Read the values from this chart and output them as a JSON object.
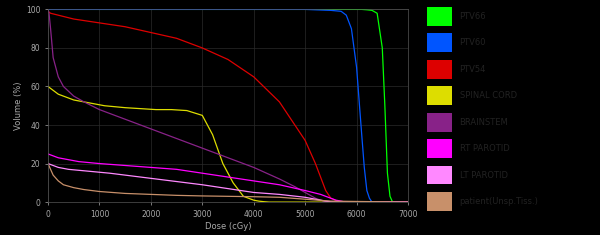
{
  "background_color": "#000000",
  "plot_bg_color": "#000000",
  "grid_color": "#2a2a2a",
  "text_color": "#aaaaaa",
  "xlabel": "Dose (cGy)",
  "ylabel": "Volume (%)",
  "xlim": [
    0,
    7000
  ],
  "ylim": [
    0,
    100
  ],
  "xticks": [
    0,
    1000,
    2000,
    3000,
    4000,
    5000,
    6000,
    7000
  ],
  "yticks": [
    0,
    20,
    40,
    60,
    80,
    100
  ],
  "legend_bg": "#d8d8d8",
  "legend_text": "#222222",
  "series": [
    {
      "label": "PTV66",
      "color": "#00ff00",
      "key": "ptv66"
    },
    {
      "label": "PTV60",
      "color": "#0055ff",
      "key": "ptv60"
    },
    {
      "label": "PTV54",
      "color": "#dd0000",
      "key": "ptv54"
    },
    {
      "label": "SPINAL CORD",
      "color": "#dddd00",
      "key": "spinal"
    },
    {
      "label": "BRAINSTEM",
      "color": "#882288",
      "key": "brainstem"
    },
    {
      "label": "RT PAROTID",
      "color": "#ff00ff",
      "key": "rt_parotid"
    },
    {
      "label": "LT PAROTID",
      "color": "#ff88ff",
      "key": "lt_parotid"
    },
    {
      "label": "patient(Unsp.Tiss.)",
      "color": "#c8906a",
      "key": "patient"
    }
  ],
  "curves": {
    "ptv66": {
      "x": [
        0,
        50,
        200,
        1000,
        3000,
        5000,
        6000,
        6100,
        6200,
        6300,
        6400,
        6500,
        6550,
        6600,
        6650,
        6700,
        7000
      ],
      "y": [
        100,
        100,
        100,
        100,
        100,
        100,
        100,
        100,
        99.8,
        99.5,
        98,
        80,
        50,
        15,
        3,
        0,
        0
      ]
    },
    "ptv60": {
      "x": [
        0,
        50,
        200,
        1000,
        3000,
        5000,
        5500,
        5700,
        5800,
        5900,
        6000,
        6100,
        6150,
        6200,
        6250,
        6300,
        7000
      ],
      "y": [
        100,
        100,
        100,
        100,
        100,
        100,
        99.5,
        99,
        97,
        90,
        70,
        35,
        18,
        6,
        2,
        0,
        0
      ]
    },
    "ptv54": {
      "x": [
        0,
        50,
        200,
        500,
        1000,
        1500,
        2000,
        2500,
        3000,
        3500,
        4000,
        4500,
        5000,
        5200,
        5300,
        5400,
        5500,
        5600,
        5700,
        5750,
        5800,
        7000
      ],
      "y": [
        99,
        98,
        97,
        95,
        93,
        91,
        88,
        85,
        80,
        74,
        65,
        52,
        32,
        20,
        13,
        6,
        2,
        0.8,
        0.2,
        0.1,
        0,
        0
      ]
    },
    "spinal": {
      "x": [
        0,
        100,
        200,
        300,
        500,
        700,
        900,
        1100,
        1300,
        1500,
        1800,
        2100,
        2400,
        2700,
        3000,
        3200,
        3400,
        3600,
        3800,
        4000,
        4100,
        4200,
        4300,
        7000
      ],
      "y": [
        60,
        58,
        56,
        55,
        53,
        52,
        51,
        50,
        49.5,
        49,
        48.5,
        48,
        48,
        47.5,
        45,
        35,
        20,
        10,
        3,
        1,
        0.5,
        0.2,
        0,
        0
      ]
    },
    "brainstem": {
      "x": [
        0,
        20,
        50,
        100,
        200,
        300,
        500,
        700,
        1000,
        1500,
        2000,
        3000,
        4000,
        4500,
        4800,
        5000,
        5100,
        5200,
        5300,
        5400,
        5500,
        5600,
        7000
      ],
      "y": [
        100,
        98,
        90,
        75,
        65,
        60,
        55,
        52,
        48,
        43,
        38,
        28,
        18,
        12,
        8,
        5,
        3.5,
        2,
        1,
        0.5,
        0.2,
        0,
        0
      ]
    },
    "rt_parotid": {
      "x": [
        0,
        50,
        100,
        200,
        400,
        600,
        1000,
        1500,
        2000,
        2500,
        3000,
        3500,
        4000,
        4500,
        5000,
        5300,
        5500,
        5600,
        5700,
        5750,
        5800,
        7000
      ],
      "y": [
        25,
        24.5,
        24,
        23,
        22,
        21,
        20,
        19,
        18,
        17,
        15,
        13,
        11,
        9,
        6,
        4,
        2,
        1,
        0.5,
        0.2,
        0,
        0
      ]
    },
    "lt_parotid": {
      "x": [
        0,
        50,
        100,
        200,
        400,
        800,
        1200,
        1800,
        2400,
        3000,
        3500,
        4000,
        4500,
        5000,
        5200,
        5400,
        5500,
        5600,
        7000
      ],
      "y": [
        20,
        19.5,
        19,
        18,
        17,
        16,
        15,
        13,
        11,
        9,
        7,
        5,
        4,
        2.5,
        1.5,
        0.5,
        0.2,
        0,
        0
      ]
    },
    "patient": {
      "x": [
        0,
        50,
        100,
        200,
        300,
        500,
        700,
        1000,
        1500,
        2000,
        2500,
        3000,
        3500,
        4000,
        4500,
        5000,
        5500,
        7000
      ],
      "y": [
        20,
        17,
        14,
        11,
        9,
        7.5,
        6.5,
        5.5,
        4.5,
        4,
        3.5,
        3.2,
        3,
        2.8,
        2.5,
        1.5,
        0.5,
        0
      ]
    }
  }
}
